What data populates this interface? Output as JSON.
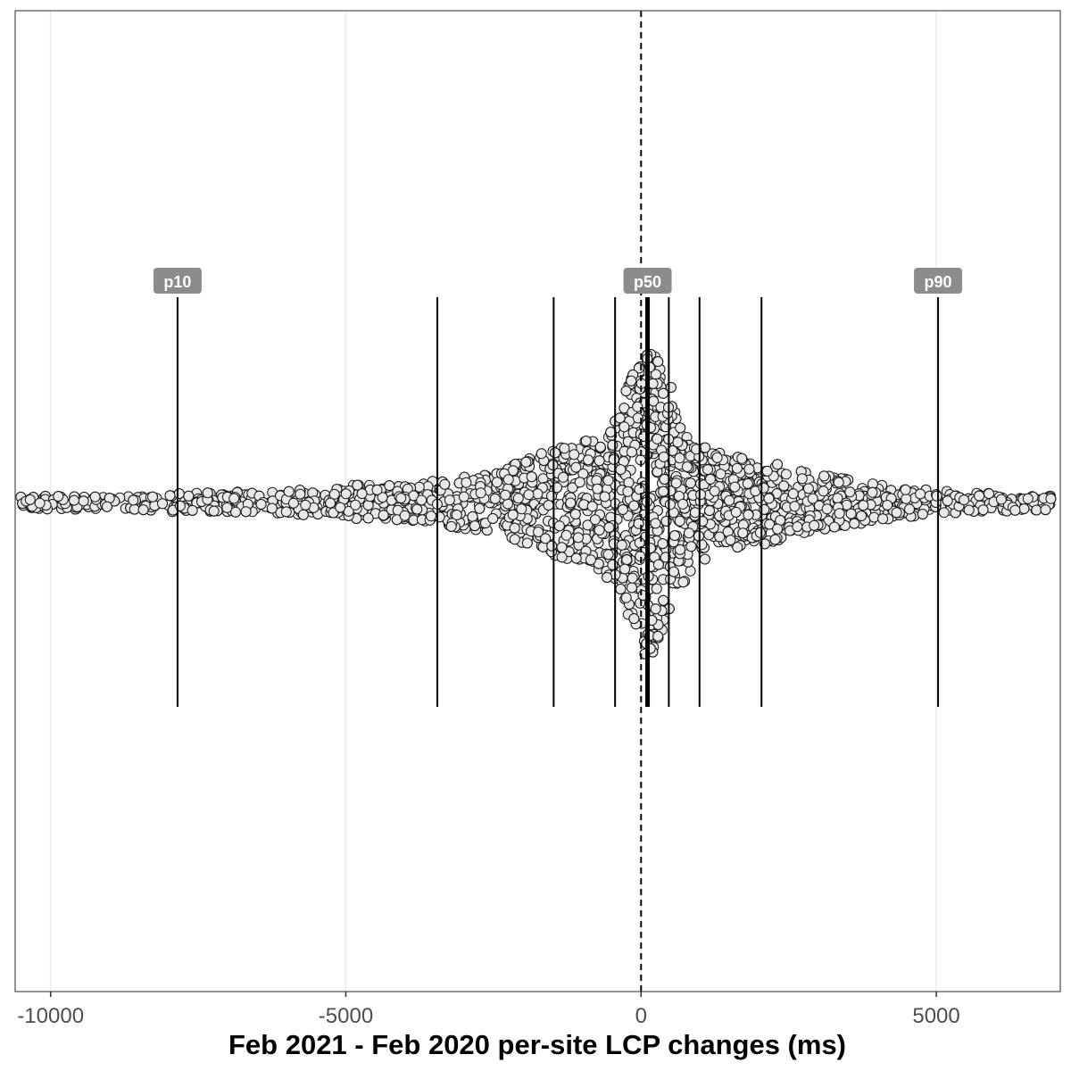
{
  "chart_data": {
    "type": "scatter",
    "title": "",
    "xlabel": "Feb 2021 - Feb 2020 per-site LCP changes (ms)",
    "ylabel": "",
    "xlim": [
      -10600,
      7100
    ],
    "x_ticks": [
      -10000,
      -5000,
      0,
      5000
    ],
    "x_tick_labels": [
      "-10000",
      "-5000",
      "0",
      "5000"
    ],
    "grid": "vertical major gridlines",
    "reference_line": {
      "x": 0,
      "style": "dashed"
    },
    "percentile_lines": [
      {
        "percentile": 10,
        "x": -7850,
        "label": "p10"
      },
      {
        "percentile": 20,
        "x": -3450
      },
      {
        "percentile": 30,
        "x": -1480
      },
      {
        "percentile": 40,
        "x": -440
      },
      {
        "percentile": 50,
        "x": 110,
        "label": "p50",
        "emphasis": true
      },
      {
        "percentile": 60,
        "x": 470
      },
      {
        "percentile": 70,
        "x": 990
      },
      {
        "percentile": 80,
        "x": 2040
      },
      {
        "percentile": 90,
        "x": 5030,
        "label": "p90"
      }
    ],
    "distribution": {
      "description": "beeswarm of per-site differences",
      "point_fill": "#e8e8e8",
      "point_stroke": "#1a1a1a"
    }
  },
  "colors": {
    "label_background": "#8c8c8c",
    "grid": "#ebebeb",
    "panel_border": "#4d4d4d",
    "lines": "#000000"
  }
}
